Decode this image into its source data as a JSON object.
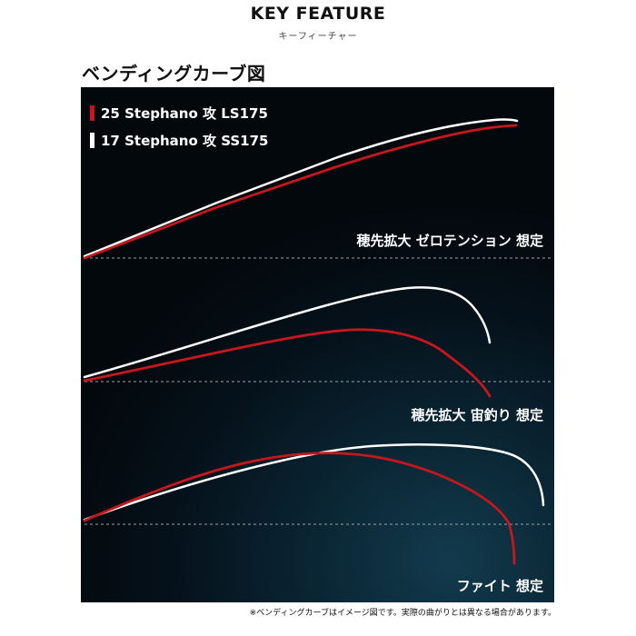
{
  "header": {
    "title": "KEY FEATURE",
    "subtitle": "キーフィーチャー"
  },
  "section_title": "ベンディングカーブ図",
  "legend": [
    {
      "label": "25 Stephano 攻 LS175",
      "color": "#c8161d"
    },
    {
      "label": "17 Stephano 攻 SS175",
      "color": "#ffffff"
    }
  ],
  "scenarios": [
    {
      "label": "穂先拡大 ゼロテンション 想定"
    },
    {
      "label": "穂先拡大 宙釣り 想定"
    },
    {
      "label": "ファイト 想定"
    }
  ],
  "colors": {
    "red_curve": "#c8161d",
    "white_curve": "#ffffff",
    "baseline": "#9aa3a8"
  },
  "footnote": "※ベンディングカーブはイメージ図です。実際の曲がりとは異なる場合があります。"
}
